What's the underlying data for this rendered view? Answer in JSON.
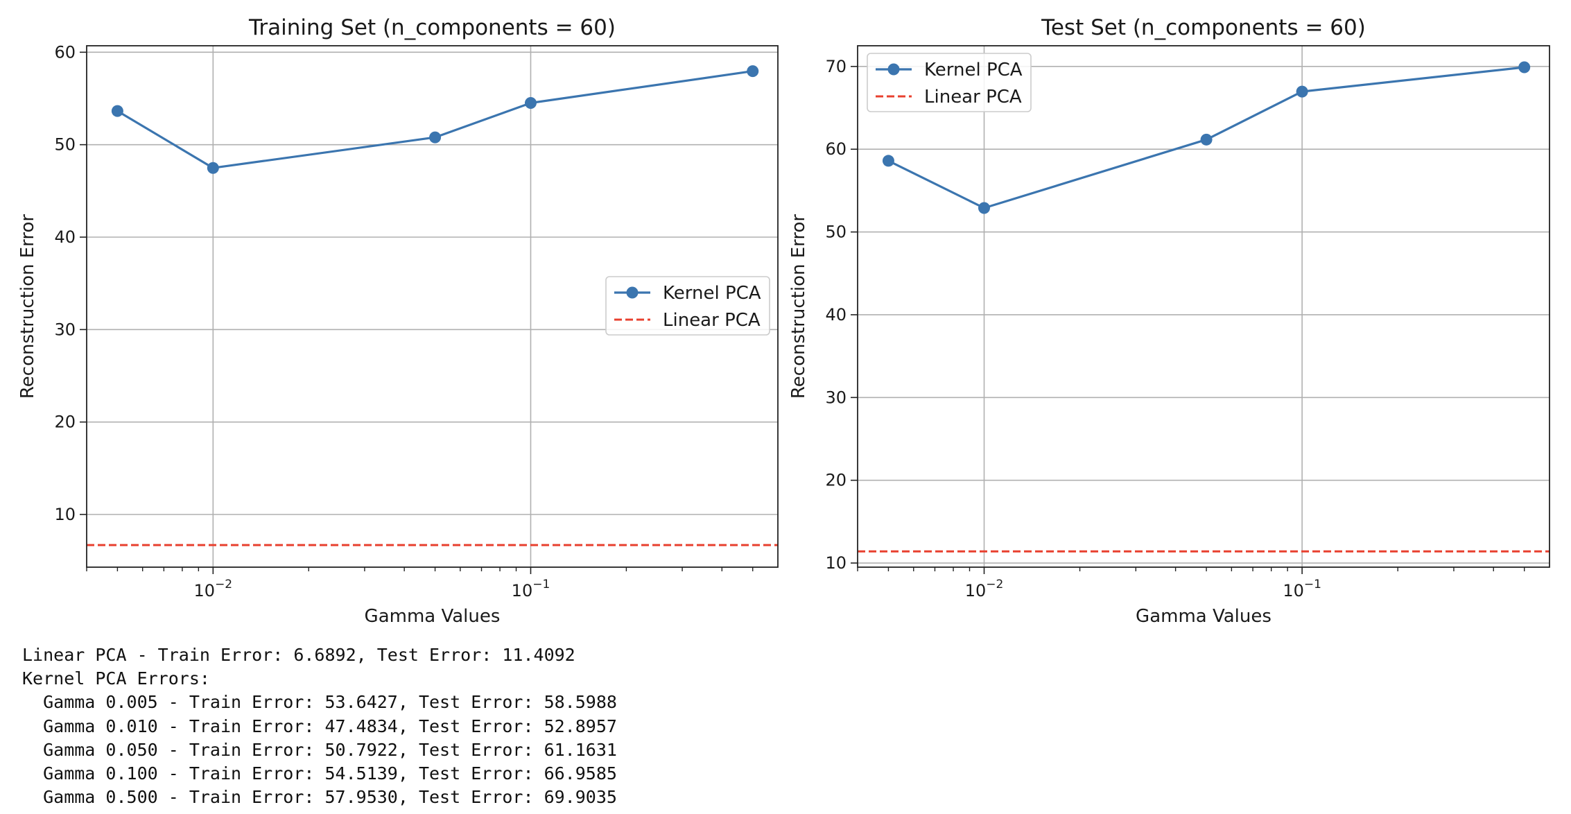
{
  "chart_data": [
    {
      "type": "line",
      "title": "Training Set (n_components = 60)",
      "xlabel": "Gamma Values",
      "ylabel": "Reconstruction Error",
      "xscale": "log",
      "xlim": [
        0.004,
        0.6
      ],
      "ylim": [
        4.3,
        60.7
      ],
      "yticks": [
        10,
        20,
        30,
        40,
        50,
        60
      ],
      "xticks": [
        0.01,
        0.1
      ],
      "xtick_labels": [
        {
          "base": "10",
          "exp": "−2"
        },
        {
          "base": "10",
          "exp": "−1"
        }
      ],
      "grid": true,
      "legend_position": "center-right",
      "series": [
        {
          "name": "Kernel PCA",
          "style": "solid-marker",
          "color": "#3b75af",
          "x": [
            0.005,
            0.01,
            0.05,
            0.1,
            0.5
          ],
          "y": [
            53.6427,
            47.4834,
            50.7922,
            54.5139,
            57.953
          ]
        },
        {
          "name": "Linear PCA",
          "style": "dashed",
          "color": "#e8402f",
          "hline": 6.6892
        }
      ]
    },
    {
      "type": "line",
      "title": "Test Set (n_components = 60)",
      "xlabel": "Gamma Values",
      "ylabel": "Reconstruction Error",
      "xscale": "log",
      "xlim": [
        0.004,
        0.6
      ],
      "ylim": [
        9.5,
        72.5
      ],
      "yticks": [
        10,
        20,
        30,
        40,
        50,
        60,
        70
      ],
      "xticks": [
        0.01,
        0.1
      ],
      "xtick_labels": [
        {
          "base": "10",
          "exp": "−2"
        },
        {
          "base": "10",
          "exp": "−1"
        }
      ],
      "grid": true,
      "legend_position": "upper-left",
      "series": [
        {
          "name": "Kernel PCA",
          "style": "solid-marker",
          "color": "#3b75af",
          "x": [
            0.005,
            0.01,
            0.05,
            0.1,
            0.5
          ],
          "y": [
            58.5988,
            52.8957,
            61.1631,
            66.9585,
            69.9035
          ]
        },
        {
          "name": "Linear PCA",
          "style": "dashed",
          "color": "#e8402f",
          "hline": 11.4092
        }
      ]
    }
  ],
  "output_lines": [
    "Linear PCA - Train Error: 6.6892, Test Error: 11.4092",
    "Kernel PCA Errors:",
    "  Gamma 0.005 - Train Error: 53.6427, Test Error: 58.5988",
    "  Gamma 0.010 - Train Error: 47.4834, Test Error: 52.8957",
    "  Gamma 0.050 - Train Error: 50.7922, Test Error: 61.1631",
    "  Gamma 0.100 - Train Error: 54.5139, Test Error: 66.9585",
    "  Gamma 0.500 - Train Error: 57.9530, Test Error: 69.9035"
  ]
}
